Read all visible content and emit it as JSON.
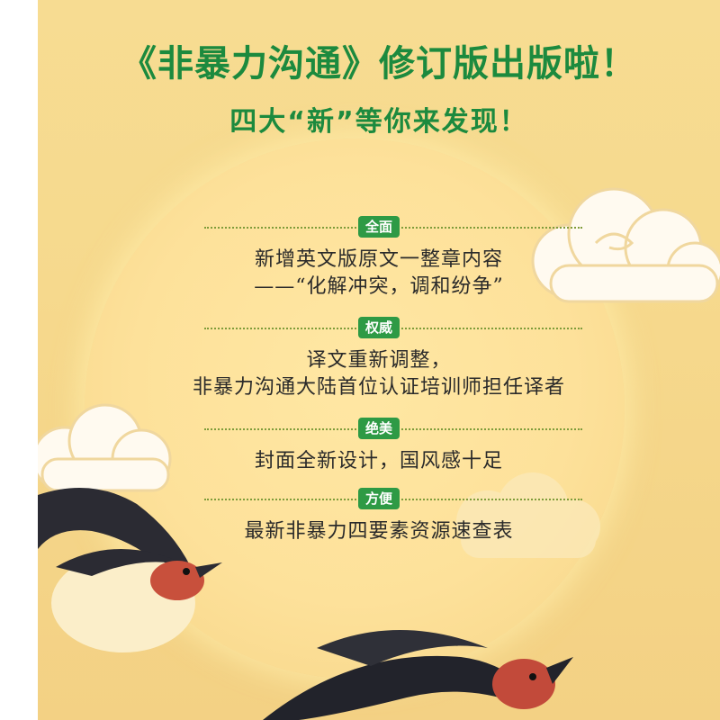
{
  "header": {
    "title": "《非暴力沟通》修订版出版啦！",
    "subtitle": "四大“新”等你来发现！"
  },
  "sections": [
    {
      "tag": "全面",
      "lines": [
        "新增英文版原文一整章内容",
        "——“化解冲突，调和纷争”"
      ]
    },
    {
      "tag": "权威",
      "lines": [
        "译文重新调整，",
        "非暴力沟通大陆首位认证培训师担任译者"
      ]
    },
    {
      "tag": "绝美",
      "lines": [
        "封面全新设计，国风感十足"
      ]
    },
    {
      "tag": "方便",
      "lines": [
        "最新非暴力四要素资源速查表"
      ]
    }
  ],
  "colors": {
    "accent": "#1c8a3e",
    "tag_bg": "#2e9a45",
    "moon": "#fde19a",
    "background": "#f6d98d"
  },
  "illustrations": [
    "cloud-icon",
    "swallow-icon",
    "moon-icon"
  ]
}
